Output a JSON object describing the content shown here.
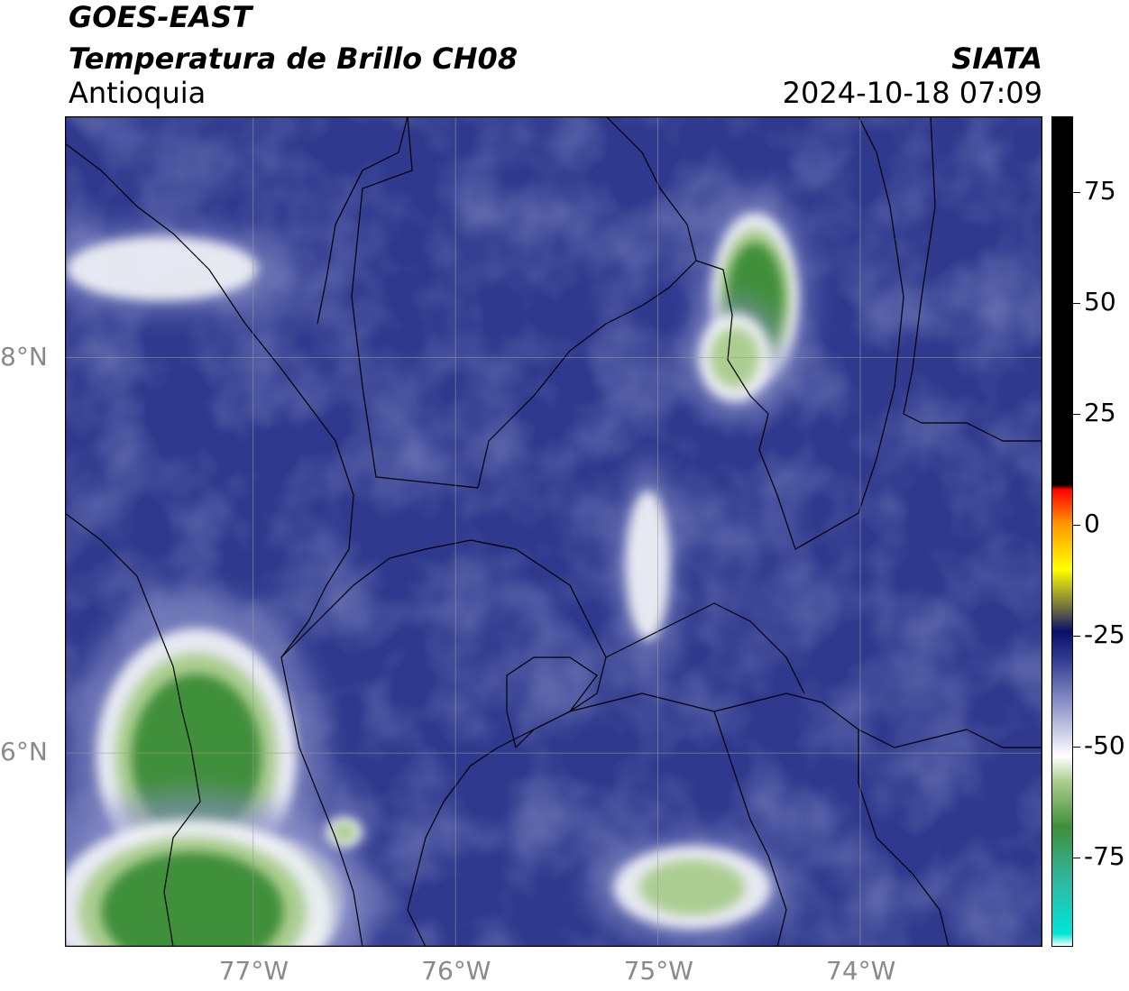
{
  "header": {
    "satellite": "GOES-EAST",
    "product": "Temperatura de Brillo CH08",
    "region": "Antioquia",
    "organization": "SIATA",
    "datetime": "2024-10-18 07:09"
  },
  "map": {
    "lon_range": [
      -77.93,
      -73.1
    ],
    "lat_range": [
      5.02,
      9.22
    ],
    "lon_ticks": [
      {
        "value": -77,
        "label": "77°W"
      },
      {
        "value": -76,
        "label": "76°W"
      },
      {
        "value": -75,
        "label": "75°W"
      },
      {
        "value": -74,
        "label": "74°W"
      }
    ],
    "lat_ticks": [
      {
        "value": 8,
        "label": "8°N"
      },
      {
        "value": 6,
        "label": "6°N"
      }
    ],
    "gridlines": true,
    "colors": {
      "background_blue": "#2f3a8e",
      "mid_blue": "#4a56a8",
      "light_blue": "#8a90c8",
      "white": "#f4f6f8",
      "light_green": "#a9cc8c",
      "green": "#3f8f3a",
      "teal": "#2fb8a0",
      "border": "#000000"
    },
    "cold_cloud_features": [
      {
        "lon": -77.28,
        "lat": 5.98,
        "rx": 0.32,
        "ry": 0.42,
        "level": "green"
      },
      {
        "lon": -76.9,
        "lat": 5.25,
        "rx": 0.22,
        "ry": 0.2,
        "level": "teal"
      },
      {
        "lon": -77.3,
        "lat": 5.2,
        "rx": 0.45,
        "ry": 0.3,
        "level": "green"
      },
      {
        "lon": -74.52,
        "lat": 8.3,
        "rx": 0.14,
        "ry": 0.28,
        "level": "green"
      },
      {
        "lon": -74.62,
        "lat": 8.0,
        "rx": 0.12,
        "ry": 0.15,
        "level": "light_green"
      },
      {
        "lon": -74.83,
        "lat": 5.32,
        "rx": 0.26,
        "ry": 0.14,
        "level": "light_green"
      },
      {
        "lon": -77.45,
        "lat": 8.45,
        "rx": 0.35,
        "ry": 0.12,
        "level": "white"
      },
      {
        "lon": -75.05,
        "lat": 6.95,
        "rx": 0.08,
        "ry": 0.28,
        "level": "white"
      },
      {
        "lon": -76.55,
        "lat": 5.6,
        "rx": 0.06,
        "ry": 0.05,
        "level": "light_green"
      }
    ]
  },
  "colorbar": {
    "range": [
      -95,
      92
    ],
    "ticks": [
      {
        "value": 75,
        "label": "75"
      },
      {
        "value": 50,
        "label": "50"
      },
      {
        "value": 25,
        "label": "25"
      },
      {
        "value": 0,
        "label": "0"
      },
      {
        "value": -25,
        "label": "-25"
      },
      {
        "value": -50,
        "label": "-50"
      },
      {
        "value": -75,
        "label": "-75"
      }
    ],
    "stops": [
      {
        "value": -95,
        "color": "#ffffff"
      },
      {
        "value": -92,
        "color": "#00e5d8"
      },
      {
        "value": -80,
        "color": "#2fb8a0"
      },
      {
        "value": -68,
        "color": "#3f8f3a"
      },
      {
        "value": -58,
        "color": "#a9cc8c"
      },
      {
        "value": -52,
        "color": "#ffffff"
      },
      {
        "value": -40,
        "color": "#8a90c8"
      },
      {
        "value": -30,
        "color": "#2f3a8e"
      },
      {
        "value": -24,
        "color": "#0a0f6a"
      },
      {
        "value": -20,
        "color": "#58584a"
      },
      {
        "value": -10,
        "color": "#ffff00"
      },
      {
        "value": 0,
        "color": "#ff9a00"
      },
      {
        "value": 8,
        "color": "#ff0000"
      },
      {
        "value": 9,
        "color": "#000000"
      },
      {
        "value": 92,
        "color": "#000000"
      }
    ]
  }
}
